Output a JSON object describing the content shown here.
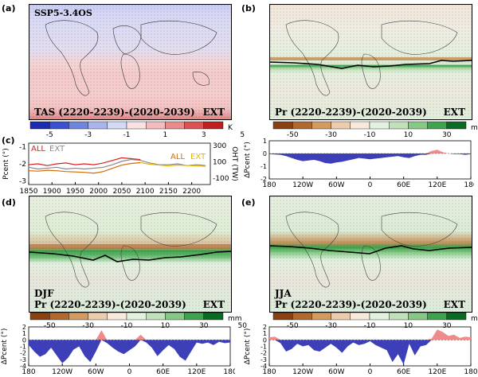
{
  "panel_labels": {
    "a": "(a)",
    "b": "(b)",
    "c": "(c)",
    "d": "(d)",
    "e": "(e)"
  },
  "colors": {
    "cold": "#6f78d0",
    "warm": "#f2b7b7",
    "warm_strong": "#d63c3c",
    "dry": "#a8642a",
    "wet": "#2e8b3e",
    "neutral": "#e6efdf",
    "neg_fill": "#3d3fb8",
    "pos_fill": "#ee8c8c",
    "all_line": "#d92020",
    "ext_line": "#888888",
    "oht_all": "#d86a00",
    "oht_ext": "#e8b400"
  },
  "map_a": {
    "scenario": "SSP5-3.4OS",
    "title": "TAS (2220-2239)-(2020-2039)",
    "tag": "EXT"
  },
  "map_b": {
    "title": "Pr (2220-2239)-(2020-2039)",
    "tag": "EXT"
  },
  "map_d": {
    "season": "DJF",
    "title": "Pr (2220-2239)-(2020-2039)",
    "tag": "EXT"
  },
  "map_e": {
    "season": "JJA",
    "title": "Pr (2220-2239)-(2020-2039)",
    "tag": "EXT"
  },
  "chart_data": [
    {
      "type": "heatmap",
      "id": "colorbar-temperature",
      "ticks": [
        "-5",
        "-3",
        "-1",
        "1",
        "3",
        "5"
      ],
      "unit": "K",
      "colors": [
        "#1c2cb0",
        "#3a52d0",
        "#6f86e0",
        "#a9b6ee",
        "#d4daf6",
        "#fbe2e2",
        "#f4bcbc",
        "#ea8a8a",
        "#dc5252",
        "#c01f1f"
      ]
    },
    {
      "type": "heatmap",
      "id": "colorbar-precip",
      "ticks": [
        "-50",
        "-30",
        "-10",
        "10",
        "30",
        "50"
      ],
      "unit": "mm",
      "colors": [
        "#8a4112",
        "#b06a30",
        "#d39a62",
        "#ecccaa",
        "#f7eadb",
        "#e3f1df",
        "#bfe2b9",
        "#86c886",
        "#3fa24d",
        "#0a6b22"
      ]
    },
    {
      "type": "line",
      "id": "timeseries",
      "xlabel": "",
      "ylabel": "Pcent (°)",
      "ylabel_right": "OHT (TW)",
      "xlim": [
        1850,
        2240
      ],
      "x_ticks": [
        "1850",
        "1900",
        "1950",
        "2000",
        "2050",
        "2100",
        "2150",
        "2200"
      ],
      "y_ticks": [
        "-1",
        "-2",
        "-3"
      ],
      "y_ticks_right": [
        "300",
        "100",
        "-100"
      ],
      "ylim": [
        -3.2,
        -0.8
      ],
      "ylim_right": [
        -180,
        330
      ],
      "legend_left": {
        "all": "ALL",
        "ext": "EXT"
      },
      "legend_right": {
        "all": "ALL",
        "ext": "EXT"
      },
      "series": [
        {
          "name": "ALL",
          "axis": "left",
          "x": [
            1850,
            1870,
            1890,
            1910,
            1930,
            1950,
            1970,
            1990,
            2010,
            2030,
            2050,
            2070,
            2090
          ],
          "y": [
            -2.05,
            -2.0,
            -2.1,
            -2.0,
            -1.95,
            -2.05,
            -2.0,
            -2.05,
            -1.95,
            -1.8,
            -1.65,
            -1.7,
            -1.75
          ]
        },
        {
          "name": "EXT",
          "axis": "left",
          "x": [
            1850,
            1870,
            1890,
            1910,
            1930,
            1950,
            1970,
            1990,
            2010,
            2030,
            2050,
            2070,
            2090,
            2110,
            2130,
            2150,
            2170,
            2190,
            2210,
            2230
          ],
          "y": [
            -2.2,
            -2.3,
            -2.25,
            -2.2,
            -2.3,
            -2.25,
            -2.3,
            -2.25,
            -2.2,
            -2.05,
            -1.85,
            -1.75,
            -1.8,
            -1.95,
            -2.05,
            -2.05,
            -2.0,
            -2.1,
            -2.05,
            -2.1
          ]
        },
        {
          "name": "ALL",
          "axis": "right",
          "x": [
            1850,
            1870,
            1890,
            1910,
            1930,
            1950,
            1970,
            1990,
            2010,
            2030,
            2050,
            2070,
            2090
          ],
          "y": [
            -10,
            -15,
            -5,
            -10,
            -20,
            -25,
            -30,
            -40,
            -20,
            20,
            60,
            80,
            90
          ]
        },
        {
          "name": "EXT",
          "axis": "right",
          "x": [
            2090,
            2110,
            2130,
            2150,
            2170,
            2190,
            2210,
            2230
          ],
          "y": [
            90,
            70,
            60,
            50,
            60,
            55,
            50,
            45
          ]
        }
      ]
    },
    {
      "type": "area",
      "id": "dpcent-annual",
      "ylabel": "ΔPcent (°)",
      "x_ticks": [
        "180",
        "120W",
        "60W",
        "0",
        "60E",
        "120E",
        "180"
      ],
      "y_ticks": [
        "1",
        "0",
        "-1",
        "-2"
      ],
      "ylim": [
        -2,
        1
      ],
      "x": [
        -180,
        -160,
        -150,
        -140,
        -130,
        -120,
        -110,
        -100,
        -90,
        -80,
        -70,
        -60,
        -50,
        -40,
        -30,
        -20,
        -10,
        0,
        10,
        20,
        30,
        40,
        50,
        60,
        70,
        80,
        90,
        100,
        110,
        120,
        130,
        140,
        150,
        160,
        170,
        180
      ],
      "y": [
        -0.05,
        -0.1,
        -0.2,
        -0.35,
        -0.5,
        -0.6,
        -0.55,
        -0.5,
        -0.6,
        -0.75,
        -0.8,
        -0.7,
        -0.65,
        -0.55,
        -0.45,
        -0.35,
        -0.4,
        -0.45,
        -0.4,
        -0.35,
        -0.3,
        -0.25,
        -0.2,
        -0.3,
        -0.35,
        -0.2,
        -0.1,
        -0.1,
        0.2,
        0.3,
        0.1,
        0.0,
        -0.05,
        -0.05,
        -0.1,
        -0.05
      ]
    },
    {
      "type": "area",
      "id": "dpcent-djf",
      "ylabel": "ΔPcent (°)",
      "x_ticks": [
        "180",
        "120W",
        "60W",
        "0",
        "60E",
        "120E",
        "180"
      ],
      "y_ticks": [
        "2",
        "1",
        "0",
        "-1",
        "-2",
        "-3",
        "-4"
      ],
      "ylim": [
        -4,
        2
      ],
      "x": [
        -180,
        -170,
        -160,
        -150,
        -140,
        -130,
        -120,
        -110,
        -100,
        -90,
        -80,
        -70,
        -60,
        -50,
        -40,
        -30,
        -20,
        -10,
        0,
        10,
        20,
        30,
        40,
        50,
        60,
        70,
        80,
        90,
        100,
        110,
        120,
        130,
        140,
        150,
        160,
        170,
        180
      ],
      "y": [
        -0.8,
        -1.8,
        -2.6,
        -2.2,
        -1.2,
        -2.4,
        -3.6,
        -2.8,
        -1.5,
        -1.0,
        -2.5,
        -3.4,
        -1.8,
        1.5,
        -0.5,
        -1.2,
        -1.8,
        -2.2,
        -1.6,
        -1.0,
        0.8,
        -0.4,
        -1.2,
        -2.5,
        -1.6,
        -0.8,
        -1.4,
        -2.6,
        -3.2,
        -1.8,
        -0.4,
        -0.6,
        -0.4,
        -0.8,
        -0.3,
        -0.5,
        -0.4
      ]
    },
    {
      "type": "area",
      "id": "dpcent-jja",
      "ylabel": "ΔPcent (°)",
      "x_ticks": [
        "180",
        "120W",
        "60W",
        "0",
        "60E",
        "120E",
        "180"
      ],
      "y_ticks": [
        "2",
        "1",
        "0",
        "-1",
        "-2",
        "-3",
        "-4"
      ],
      "ylim": [
        -4,
        2
      ],
      "x": [
        -180,
        -170,
        -160,
        -150,
        -140,
        -130,
        -120,
        -110,
        -100,
        -90,
        -80,
        -70,
        -60,
        -50,
        -40,
        -30,
        -20,
        -10,
        0,
        10,
        20,
        30,
        40,
        50,
        60,
        70,
        80,
        90,
        100,
        110,
        120,
        130,
        140,
        150,
        160,
        170,
        180
      ],
      "y": [
        0.4,
        0.5,
        -0.5,
        -1.8,
        -1.4,
        -0.6,
        -1.0,
        -0.8,
        -1.6,
        -1.8,
        -1.2,
        -0.6,
        -1.2,
        -2.0,
        -1.0,
        -0.4,
        -0.8,
        -0.6,
        -0.2,
        -0.8,
        -1.2,
        -1.6,
        -3.4,
        -2.2,
        -3.8,
        -0.6,
        -2.4,
        -1.0,
        -0.8,
        0.2,
        1.6,
        1.2,
        0.6,
        0.8,
        0.3,
        0.5,
        0.4
      ]
    }
  ]
}
